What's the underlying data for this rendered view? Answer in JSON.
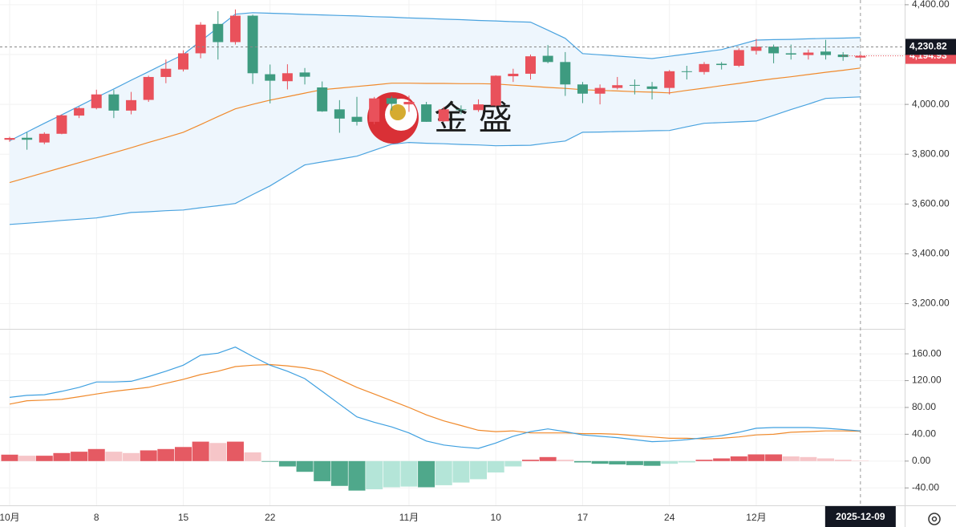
{
  "chart_data": [
    {
      "type": "candlestick",
      "categories": [
        "10月",
        null,
        null,
        null,
        null,
        "8",
        null,
        null,
        null,
        null,
        "15",
        null,
        null,
        null,
        null,
        "22",
        null,
        null,
        null,
        null,
        null,
        null,
        null,
        "11月",
        null,
        null,
        null,
        null,
        "10",
        null,
        null,
        null,
        null,
        "17",
        null,
        null,
        null,
        null,
        "24",
        null,
        null,
        null,
        null,
        "12月",
        null,
        null,
        null,
        null,
        null,
        "2025-12-09"
      ],
      "open": [
        3858,
        3866,
        3847,
        3882,
        3955,
        3985,
        4040,
        3975,
        4018,
        4110,
        4140,
        4205,
        4323,
        4250,
        4356,
        4121,
        4093,
        4128,
        4068,
        3980,
        3950,
        3930,
        4025,
        4000,
        4000,
        3932,
        3980,
        3977,
        3995,
        4113,
        4123,
        4195,
        4170,
        4080,
        4043,
        4066,
        4078,
        4072,
        4066,
        4133,
        4130,
        4163,
        4155,
        4215,
        4232,
        4205,
        4198,
        4212,
        4200,
        4188
      ],
      "high": [
        3870,
        3888,
        3888,
        3960,
        3990,
        4059,
        4058,
        4050,
        4115,
        4180,
        4217,
        4330,
        4374,
        4381,
        4360,
        4160,
        4161,
        4146,
        4092,
        4017,
        4030,
        4030,
        4033,
        4035,
        4010,
        3990,
        3996,
        4020,
        4117,
        4143,
        4200,
        4238,
        4210,
        4090,
        4080,
        4110,
        4100,
        4090,
        4138,
        4155,
        4170,
        4170,
        4225,
        4263,
        4240,
        4240,
        4220,
        4259,
        4210,
        4200
      ],
      "low": [
        3850,
        3818,
        3840,
        3880,
        3945,
        3980,
        3945,
        3960,
        4010,
        4085,
        4132,
        4185,
        4180,
        4240,
        4082,
        4004,
        4060,
        4080,
        3970,
        3886,
        3915,
        3920,
        3975,
        3970,
        3930,
        3930,
        3960,
        3970,
        3990,
        4090,
        4100,
        4165,
        4034,
        4005,
        4000,
        4060,
        4040,
        4020,
        4040,
        4100,
        4120,
        4140,
        4150,
        4200,
        4165,
        4180,
        4180,
        4180,
        4175,
        4180
      ],
      "close": [
        3865,
        3858,
        3882,
        3956,
        3985,
        4040,
        3975,
        4017,
        4110,
        4143,
        4205,
        4320,
        4250,
        4356,
        4125,
        4095,
        4125,
        4111,
        3972,
        3943,
        3930,
        4024,
        4002,
        4010,
        3930,
        3980,
        3977,
        4000,
        4115,
        4123,
        4193,
        4170,
        4080,
        4043,
        4066,
        4077,
        4076,
        4062,
        4133,
        4130,
        4162,
        4158,
        4218,
        4232,
        4205,
        4200,
        4208,
        4198,
        4190,
        4194.93
      ],
      "up_color": "#e9515b",
      "down_color": "#3e9b80",
      "bollinger": {
        "upper": [
          3854,
          3889,
          3924,
          3958,
          3993,
          4028,
          4062,
          4097,
          4131,
          4166,
          4200,
          4254,
          4308,
          4362,
          4368,
          4366,
          4364,
          4361,
          4359,
          4357,
          4355,
          4352,
          4350,
          4347,
          4345,
          4342,
          4340,
          4337,
          4335,
          4332,
          4330,
          4298,
          4265,
          4204,
          4199,
          4194,
          4189,
          4184,
          4193,
          4202,
          4211,
          4220,
          4239,
          4258,
          4260,
          4261,
          4263,
          4265,
          4266,
          4268
        ],
        "middle": [
          3686,
          3706,
          3726,
          3746,
          3766,
          3786,
          3806,
          3826,
          3847,
          3867,
          3888,
          3919,
          3951,
          3982,
          4000,
          4017,
          4031,
          4045,
          4059,
          4065,
          4072,
          4078,
          4085,
          4085,
          4084,
          4084,
          4083,
          4083,
          4082,
          4077,
          4073,
          4068,
          4064,
          4059,
          4056,
          4054,
          4051,
          4049,
          4046,
          4056,
          4065,
          4075,
          4084,
          4094,
          4103,
          4111,
          4120,
          4129,
          4137,
          4146
        ],
        "lower": [
          3518,
          3523,
          3528,
          3534,
          3539,
          3544,
          3555,
          3566,
          3569,
          3573,
          3576,
          3585,
          3593,
          3602,
          3638,
          3673,
          3715,
          3757,
          3769,
          3780,
          3792,
          3816,
          3840,
          3847,
          3844,
          3842,
          3839,
          3837,
          3834,
          3835,
          3836,
          3845,
          3853,
          3888,
          3889,
          3891,
          3892,
          3894,
          3895,
          3910,
          3924,
          3927,
          3930,
          3933,
          3956,
          3979,
          4001,
          4024,
          4027,
          4030
        ],
        "band_color": "#4aa3df",
        "middle_color": "#f08a2c",
        "fill_color": "#eef6fd"
      },
      "ylim": [
        3102,
        4419
      ],
      "yticks": [
        {
          "value": 3200,
          "label": "3,200.00"
        },
        {
          "value": 3400,
          "label": "3,400.00"
        },
        {
          "value": 3600,
          "label": "3,600.00"
        },
        {
          "value": 3800,
          "label": "3,800.00"
        },
        {
          "value": 4000,
          "label": "4,000.00"
        },
        {
          "value": 4200,
          "label": "4,200.00"
        },
        {
          "value": 4400,
          "label": "4,400.00"
        }
      ],
      "grid": true,
      "last_price": {
        "value": 4194.93,
        "label": "4,194.93"
      },
      "crosshair_price": {
        "value": 4230.82,
        "label": "4,230.82"
      },
      "watermark": "金 盛"
    },
    {
      "type": "macd",
      "dif": {
        "color": "#3fa0e0",
        "values": [
          95,
          98,
          99,
          104,
          110,
          118,
          118,
          119,
          126,
          134,
          143,
          158,
          161,
          170,
          156,
          143,
          134,
          123,
          104,
          85,
          66,
          58,
          51,
          42,
          30,
          24,
          21,
          19,
          27,
          37,
          44,
          48,
          44,
          39,
          37,
          35,
          32,
          29,
          30,
          32,
          35,
          38,
          43,
          49,
          50,
          50,
          50,
          49,
          47,
          45
        ]
      },
      "dea": {
        "color": "#f08a2c",
        "values": [
          85,
          90,
          91,
          92,
          96,
          100,
          104,
          107,
          110,
          116,
          122,
          129,
          134,
          141,
          143,
          144,
          142,
          139,
          134,
          122,
          110,
          100,
          90,
          80,
          69,
          60,
          53,
          46,
          44,
          45,
          42,
          42,
          42,
          41,
          41,
          40,
          38,
          36,
          34,
          34,
          33,
          34,
          36,
          39,
          40,
          43,
          44,
          45,
          45,
          44.5
        ]
      },
      "histogram": [
        9.6,
        8,
        8,
        12,
        14,
        18,
        14,
        12,
        16,
        18,
        21,
        29,
        27,
        29,
        13,
        -1,
        -8,
        -16,
        -30,
        -37,
        -44,
        -42,
        -39,
        -38,
        -39,
        -36,
        -32,
        -27,
        -17,
        -8,
        2,
        6,
        2,
        -2,
        -4,
        -5,
        -6,
        -7,
        -4,
        -2,
        2,
        4,
        7,
        10,
        10,
        7,
        6,
        4,
        2,
        0.5
      ],
      "histogram_colors": {
        "up_rising": "#e55a63",
        "up_falling": "#f6c5c8",
        "down_falling": "#4fa88b",
        "down_rising": "#b4e5d8"
      },
      "ylim": [
        -66,
        196
      ],
      "yticks": [
        {
          "value": -40,
          "label": "-40.00"
        },
        {
          "value": 0,
          "label": "0.00"
        },
        {
          "value": 40,
          "label": "40.00"
        },
        {
          "value": 80,
          "label": "80.00"
        },
        {
          "value": 120,
          "label": "120.00"
        },
        {
          "value": 160,
          "label": "160.00"
        }
      ],
      "grid": true
    }
  ]
}
